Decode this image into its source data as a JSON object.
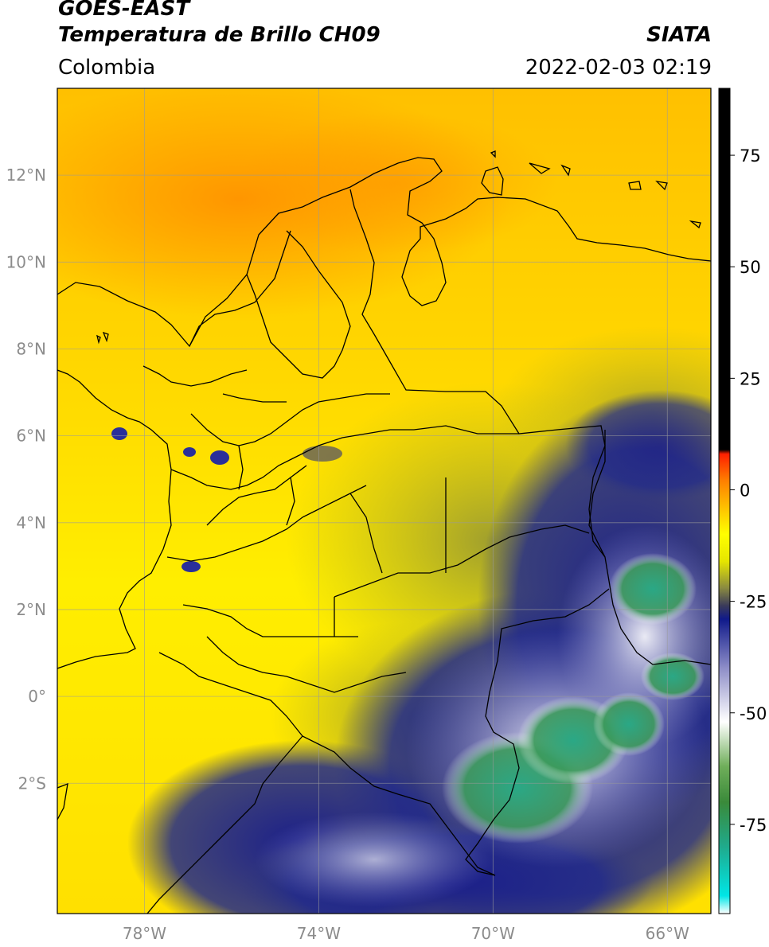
{
  "header": {
    "satellite": "GOES-EAST",
    "product": "Temperatura de Brillo CH09",
    "region": "Colombia",
    "organization": "SIATA",
    "datetime": "2022-02-03 02:19"
  },
  "map": {
    "lon_range": [
      -80,
      -65
    ],
    "lat_range": [
      -5,
      14
    ],
    "lon_ticks": [
      {
        "value": -78,
        "label": "78°W"
      },
      {
        "value": -74,
        "label": "74°W"
      },
      {
        "value": -70,
        "label": "70°W"
      },
      {
        "value": -66,
        "label": "66°W"
      }
    ],
    "lat_ticks": [
      {
        "value": 12,
        "label": "12°N"
      },
      {
        "value": 10,
        "label": "10°N"
      },
      {
        "value": 8,
        "label": "8°N"
      },
      {
        "value": 6,
        "label": "6°N"
      },
      {
        "value": 4,
        "label": "4°N"
      },
      {
        "value": 2,
        "label": "2°N"
      },
      {
        "value": 0,
        "label": "0°"
      },
      {
        "value": -2,
        "label": "2°S"
      }
    ],
    "gridlines": true
  },
  "colorbar": {
    "range": [
      -95,
      90
    ],
    "ticks": [
      {
        "value": 75,
        "label": "75"
      },
      {
        "value": 50,
        "label": "50"
      },
      {
        "value": 25,
        "label": "25"
      },
      {
        "value": 0,
        "label": "0"
      },
      {
        "value": -25,
        "label": "-25"
      },
      {
        "value": -50,
        "label": "-50"
      },
      {
        "value": -75,
        "label": "-75"
      }
    ],
    "stops": [
      {
        "value": -95,
        "color": "#ffffff"
      },
      {
        "value": -91,
        "color": "#00e6e6"
      },
      {
        "value": -80,
        "color": "#1faa8c"
      },
      {
        "value": -70,
        "color": "#3a8a3a"
      },
      {
        "value": -62,
        "color": "#6fae5a"
      },
      {
        "value": -52,
        "color": "#ffffff"
      },
      {
        "value": -40,
        "color": "#8e8ec8"
      },
      {
        "value": -29,
        "color": "#101a8a"
      },
      {
        "value": -26,
        "color": "#3a3a5a"
      },
      {
        "value": -22,
        "color": "#8a8a40"
      },
      {
        "value": -16,
        "color": "#e6e600"
      },
      {
        "value": -10,
        "color": "#ffff00"
      },
      {
        "value": -5,
        "color": "#ffcc00"
      },
      {
        "value": 2,
        "color": "#ff8000"
      },
      {
        "value": 8,
        "color": "#ff2000"
      },
      {
        "value": 9,
        "color": "#000000"
      },
      {
        "value": 90,
        "color": "#000000"
      }
    ]
  }
}
